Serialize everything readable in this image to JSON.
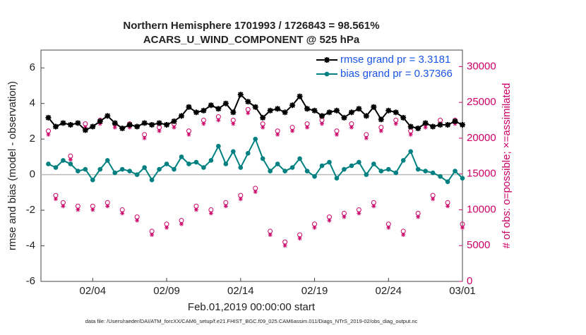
{
  "chart_data": {
    "type": "line",
    "title": "Northern Hemisphere 1701993 / 1726843 = 98.561%",
    "subtitle": "ACARS_U_WIND_COMPONENT @ 525 hPa",
    "x_label": "Feb.01,2019 00:00:00 start",
    "y_label": "rmse and bias (model - observation)",
    "y2_label": "# of obs: o=possible; ×=assimilated",
    "footnote": "data file: /Users/raeder/DAI/ATM_forcXX/CAM6_setup/f.e21.FHIST_BGC.f09_025.CAM6assim.011/Diags_NTrS_2019-02/obs_diag_output.nc",
    "x": [
      0,
      0.5,
      1,
      1.5,
      2,
      2.5,
      3,
      3.5,
      4,
      4.5,
      5,
      5.5,
      6,
      6.5,
      7,
      7.5,
      8,
      8.5,
      9,
      9.5,
      10,
      10.5,
      11,
      11.5,
      12,
      12.5,
      13,
      13.5,
      14,
      14.5,
      15,
      15.5,
      16,
      16.5,
      17,
      17.5,
      18,
      18.5,
      19,
      19.5,
      20,
      20.5,
      21,
      21.5,
      22,
      22.5,
      23,
      23.5,
      24,
      24.5,
      25,
      25.5,
      26,
      26.5,
      27,
      27.5,
      28
    ],
    "xlim": [
      -0.5,
      28
    ],
    "xticks": [
      {
        "value": 3,
        "label": "02/04"
      },
      {
        "value": 8,
        "label": "02/09"
      },
      {
        "value": 13,
        "label": "02/14"
      },
      {
        "value": 18,
        "label": "02/19"
      },
      {
        "value": 23,
        "label": "02/24"
      },
      {
        "value": 28,
        "label": "03/01"
      }
    ],
    "ylim": [
      -6,
      7
    ],
    "yticks": [
      -6,
      -4,
      -2,
      0,
      2,
      4,
      6
    ],
    "y2lim": [
      0,
      32300
    ],
    "y2ticks": [
      0,
      5000,
      10000,
      15000,
      20000,
      25000,
      30000
    ],
    "legend": "upper right",
    "series": [
      {
        "name": "rmse grand pr = 3.3181",
        "color": "#000000",
        "marker": "star",
        "values": [
          3.2,
          2.7,
          2.9,
          2.8,
          2.9,
          2.5,
          2.7,
          3.0,
          3.3,
          2.9,
          2.6,
          2.8,
          2.7,
          2.9,
          2.8,
          2.9,
          2.8,
          3.0,
          3.3,
          3.8,
          3.5,
          3.6,
          3.9,
          3.7,
          4.0,
          3.5,
          4.5,
          4.1,
          3.8,
          3.2,
          3.6,
          3.7,
          3.5,
          3.9,
          4.4,
          3.7,
          3.6,
          3.3,
          3.5,
          3.6,
          3.2,
          3.5,
          3.7,
          3.3,
          3.8,
          3.1,
          3.6,
          3.5,
          3.2,
          2.7,
          2.6,
          2.9,
          2.7,
          2.8,
          2.8,
          3.0,
          2.8
        ]
      },
      {
        "name": "bias grand pr = 0.37366",
        "color": "#008080",
        "marker": "dot",
        "values": [
          0.6,
          0.4,
          0.8,
          0.6,
          0.2,
          0.3,
          -0.3,
          0.3,
          0.8,
          0.1,
          0.3,
          0.2,
          0.0,
          0.4,
          -0.3,
          0.3,
          0.6,
          0.3,
          1.0,
          0.6,
          0.7,
          0.4,
          0.8,
          1.6,
          0.6,
          1.3,
          0.4,
          1.2,
          2.0,
          0.9,
          0.2,
          0.6,
          0.2,
          0.4,
          0.9,
          0.2,
          -0.1,
          0.5,
          0.7,
          -0.2,
          0.3,
          0.5,
          0.7,
          0.0,
          0.6,
          0.2,
          0.3,
          0.1,
          0.8,
          1.3,
          0.3,
          0.2,
          0.1,
          -0.1,
          -0.4,
          0.2,
          -0.2
        ]
      }
    ],
    "obs_series": [
      {
        "color": "#cc0066",
        "marker": "circle",
        "axis": "y2",
        "values": [
          21000,
          12000,
          11000,
          17500,
          10500,
          22000,
          10500,
          22500,
          11000,
          22000,
          10000,
          22000,
          9000,
          20500,
          7000,
          21500,
          8000,
          22000,
          8500,
          21000,
          10500,
          22500,
          10000,
          23000,
          11000,
          22500,
          12000,
          24000,
          13000,
          22000,
          7000,
          21000,
          5500,
          21500,
          6500,
          22000,
          8000,
          22500,
          9000,
          21000,
          9500,
          22000,
          10000,
          20500,
          11000,
          21500,
          8000,
          22500,
          7000,
          21000,
          9500,
          22000,
          12000,
          22500,
          11000,
          22500,
          8000
        ]
      },
      {
        "color": "#cc0066",
        "marker": "asterisk",
        "axis": "y2",
        "values": [
          20500,
          11500,
          10500,
          17000,
          10000,
          21500,
          10000,
          22000,
          10500,
          21500,
          9500,
          21500,
          8500,
          20000,
          6500,
          21000,
          7500,
          21500,
          8000,
          20500,
          10000,
          22000,
          9500,
          22500,
          10500,
          22000,
          11500,
          23500,
          12500,
          21500,
          6500,
          20500,
          5000,
          21000,
          6000,
          21500,
          7500,
          22000,
          8500,
          20500,
          9000,
          21500,
          9500,
          20000,
          10500,
          21000,
          7500,
          22000,
          6500,
          20500,
          9000,
          21500,
          11500,
          22000,
          10500,
          22000,
          7500
        ]
      }
    ]
  }
}
